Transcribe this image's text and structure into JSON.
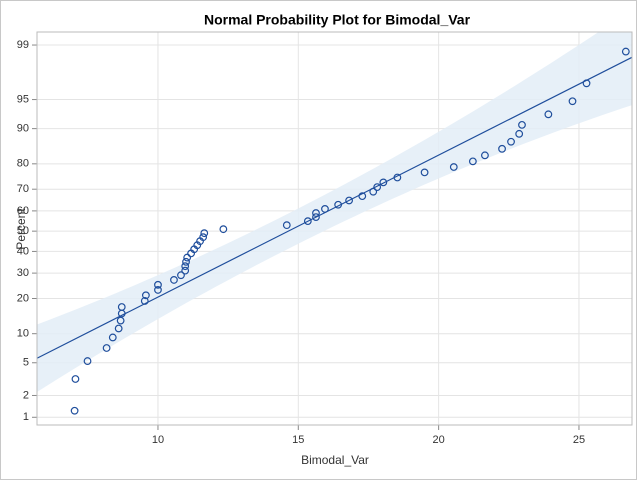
{
  "chart_data": {
    "type": "scatter",
    "title": "Normal Probability Plot for Bimodal_Var",
    "x_label": "Bimodal_Var",
    "y_label": "Percent",
    "x": [
      7.03,
      7.06,
      7.49,
      8.17,
      8.39,
      8.6,
      8.67,
      8.71,
      8.71,
      9.53,
      9.57,
      10.0,
      10.0,
      10.57,
      10.82,
      10.97,
      10.97,
      11.0,
      11.04,
      11.18,
      11.29,
      11.4,
      11.5,
      11.61,
      11.65,
      12.33,
      14.59,
      15.34,
      15.63,
      15.63,
      15.95,
      16.42,
      16.81,
      17.28,
      17.67,
      17.81,
      18.03,
      18.53,
      19.5,
      20.54,
      21.22,
      21.65,
      22.26,
      22.58,
      22.87,
      22.97,
      23.91,
      24.77,
      25.27,
      26.67
    ],
    "values": [
      1.24,
      3.23,
      5.22,
      7.21,
      9.2,
      11.19,
      13.18,
      15.17,
      17.16,
      19.15,
      21.14,
      23.13,
      25.12,
      27.11,
      29.1,
      31.09,
      33.08,
      35.07,
      37.06,
      39.05,
      41.04,
      43.03,
      45.02,
      47.01,
      49.0,
      50.99,
      52.99,
      54.98,
      56.97,
      58.96,
      60.95,
      62.94,
      64.93,
      66.92,
      68.91,
      70.9,
      72.89,
      74.88,
      76.87,
      78.86,
      80.85,
      82.84,
      84.83,
      86.82,
      88.81,
      90.8,
      92.79,
      94.78,
      96.77,
      98.76
    ],
    "color": "#1f4e9c",
    "xlim": [
      5.69,
      26.89
    ],
    "xticks": [
      10,
      15,
      20,
      25
    ],
    "ylim": [
      0.77,
      99.36
    ],
    "yticks": [
      1,
      2,
      5,
      10,
      20,
      30,
      40,
      50,
      60,
      70,
      80,
      90,
      95,
      99
    ],
    "y_scale": "probit",
    "grid": true
  }
}
